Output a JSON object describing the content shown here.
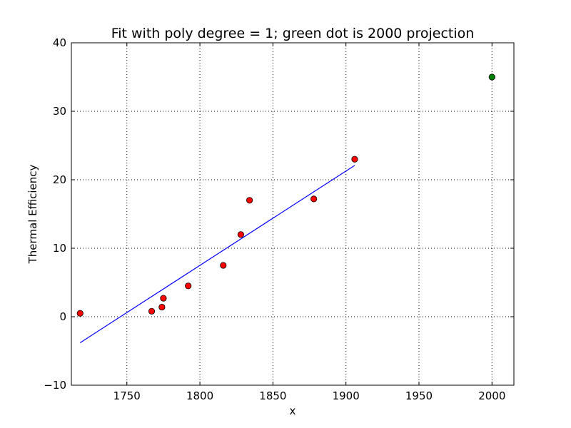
{
  "chart_data": {
    "type": "scatter",
    "title": "Fit with poly degree = 1; green dot is 2000 projection",
    "xlabel": "x",
    "ylabel": "Thermal Efficiency",
    "xlim": [
      1712,
      2015
    ],
    "ylim": [
      -10,
      40
    ],
    "xticks": [
      1750,
      1800,
      1850,
      1900,
      1950,
      2000
    ],
    "yticks": [
      -10,
      0,
      10,
      20,
      30,
      40
    ],
    "xtick_labels": [
      "1750",
      "1800",
      "1850",
      "1900",
      "1950",
      "2000"
    ],
    "ytick_labels": [
      "−10",
      "0",
      "10",
      "20",
      "30",
      "40"
    ],
    "grid": true,
    "series": [
      {
        "kind": "scatter",
        "color": "#ff0000",
        "x": [
          1718,
          1767,
          1774,
          1775,
          1792,
          1816,
          1828,
          1834,
          1878,
          1906
        ],
        "y": [
          0.5,
          0.8,
          1.4,
          2.7,
          4.5,
          7.5,
          12.0,
          17.0,
          17.2,
          23.0
        ]
      },
      {
        "kind": "line",
        "color": "#0000ff",
        "x": [
          1718,
          1906
        ],
        "y": [
          -3.8,
          22.1
        ]
      },
      {
        "kind": "scatter",
        "color": "#008000",
        "x": [
          2000
        ],
        "y": [
          35.0
        ]
      }
    ]
  }
}
